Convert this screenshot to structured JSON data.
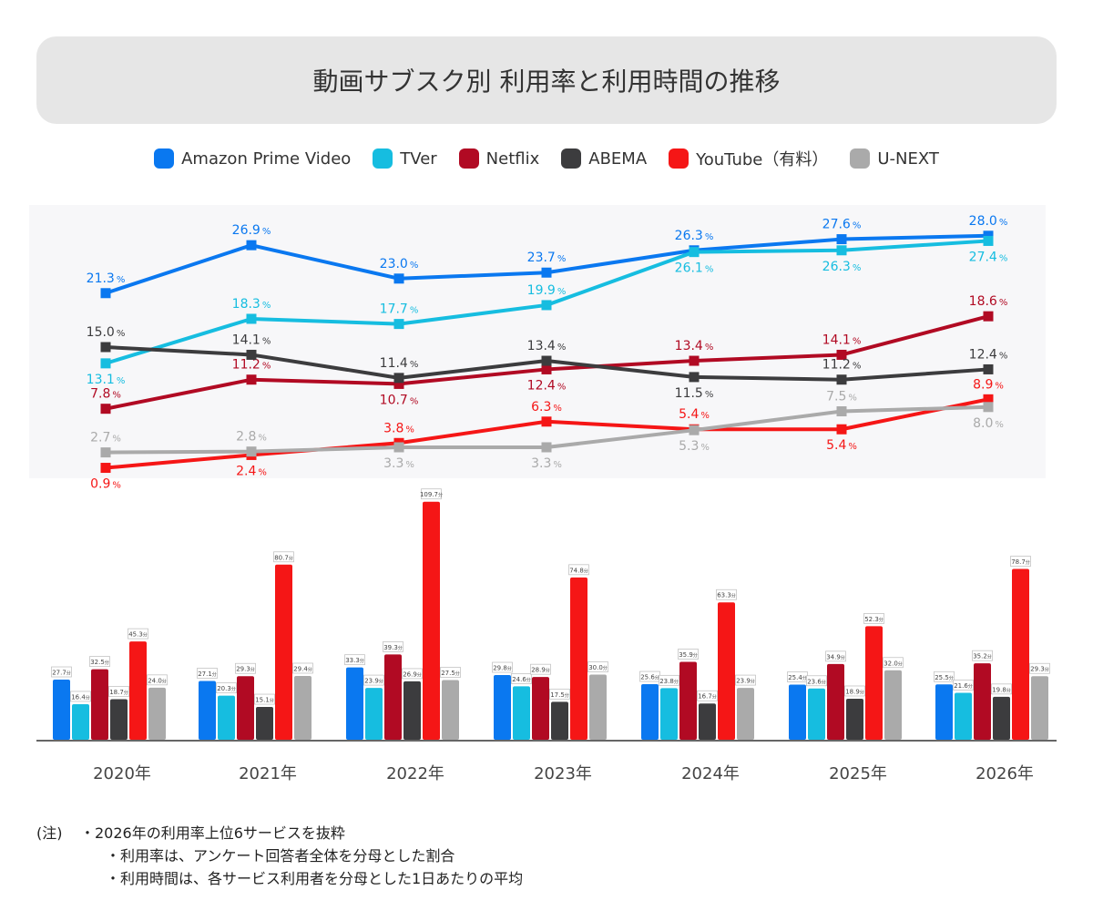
{
  "title": "動画サブスク別 利用率と利用時間の推移",
  "legend": [
    {
      "name": "Amazon Prime Video",
      "color": "#0a78f0"
    },
    {
      "name": "TVer",
      "color": "#16bde0"
    },
    {
      "name": "Netflix",
      "color": "#b10a23"
    },
    {
      "name": "ABEMA",
      "color": "#3c3c3e"
    },
    {
      "name": "YouTube（有料）",
      "color": "#f51616"
    },
    {
      "name": "U-NEXT",
      "color": "#aaaaaa"
    }
  ],
  "chart_data": [
    {
      "type": "line",
      "unit": "%",
      "x": [
        "2020年",
        "2021年",
        "2022年",
        "2023年",
        "2024年",
        "2025年",
        "2026年"
      ],
      "series": [
        {
          "name": "Amazon Prime Video",
          "color": "#0a78f0",
          "values": [
            21.3,
            26.9,
            23.0,
            23.7,
            26.3,
            27.6,
            28.0
          ]
        },
        {
          "name": "TVer",
          "color": "#16bde0",
          "values": [
            13.1,
            18.3,
            17.7,
            19.9,
            26.1,
            26.3,
            27.4
          ]
        },
        {
          "name": "Netflix",
          "color": "#b10a23",
          "values": [
            7.8,
            11.2,
            10.7,
            12.4,
            13.4,
            14.1,
            18.6
          ]
        },
        {
          "name": "ABEMA",
          "color": "#3c3c3e",
          "values": [
            15.0,
            14.1,
            11.4,
            13.4,
            11.5,
            11.2,
            12.4
          ]
        },
        {
          "name": "YouTube（有料）",
          "color": "#f51616",
          "values": [
            0.9,
            2.4,
            3.8,
            6.3,
            5.4,
            5.4,
            8.9
          ]
        },
        {
          "name": "U-NEXT",
          "color": "#aaaaaa",
          "values": [
            2.7,
            2.8,
            3.3,
            3.3,
            5.3,
            7.5,
            8.0
          ]
        }
      ]
    },
    {
      "type": "bar",
      "unit": "分",
      "categories": [
        "2020年",
        "2021年",
        "2022年",
        "2023年",
        "2024年",
        "2025年",
        "2026年"
      ],
      "series": [
        {
          "name": "Amazon Prime Video",
          "color": "#0a78f0",
          "values": [
            27.7,
            27.1,
            33.3,
            29.8,
            25.6,
            25.4,
            25.5
          ]
        },
        {
          "name": "TVer",
          "color": "#16bde0",
          "values": [
            16.4,
            20.3,
            23.9,
            24.6,
            23.8,
            23.6,
            21.6
          ]
        },
        {
          "name": "Netflix",
          "color": "#b10a23",
          "values": [
            32.5,
            29.3,
            39.3,
            28.9,
            35.9,
            34.9,
            35.2
          ]
        },
        {
          "name": "ABEMA",
          "color": "#3c3c3e",
          "values": [
            18.7,
            15.1,
            26.9,
            17.5,
            16.7,
            18.9,
            19.8
          ]
        },
        {
          "name": "YouTube（有料）",
          "color": "#f51616",
          "values": [
            45.3,
            80.7,
            109.7,
            74.8,
            63.3,
            52.3,
            78.7
          ]
        },
        {
          "name": "U-NEXT",
          "color": "#aaaaaa",
          "values": [
            24.0,
            29.4,
            27.5,
            30.0,
            23.9,
            32.0,
            29.3
          ]
        }
      ]
    }
  ],
  "notes": {
    "prefix": "(注)",
    "lines": [
      "・2026年の利用率上位6サービスを抜粋",
      "・利用率は、アンケート回答者全体を分母とした割合",
      "・利用時間は、各サービス利用者を分母とした1日あたりの平均"
    ]
  }
}
